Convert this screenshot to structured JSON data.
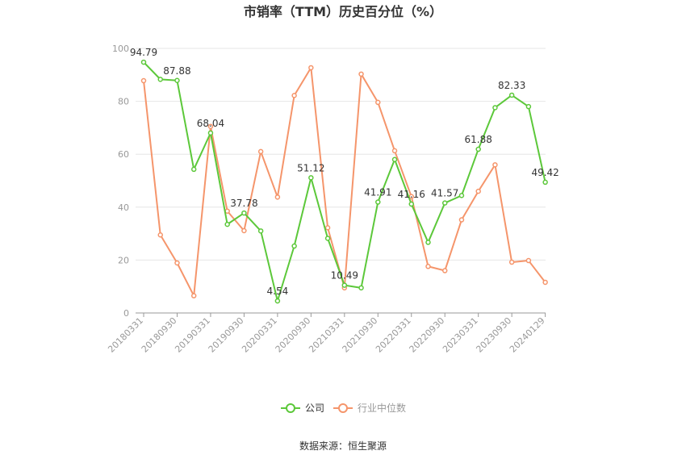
{
  "chart_data": {
    "type": "line",
    "title": "市销率（TTM）历史百分位（%）",
    "xlabel": "",
    "ylabel": "",
    "ylim": [
      0,
      100
    ],
    "yticks": [
      0,
      20,
      40,
      60,
      80,
      100
    ],
    "grid": true,
    "legend_position": "bottom",
    "xtick_labels": [
      "20180331",
      "20180930",
      "20190331",
      "20190930",
      "20200331",
      "20200930",
      "20210331",
      "20210930",
      "20220331",
      "20220930",
      "20230331",
      "20230930",
      "20240129"
    ],
    "x": [
      "20180331",
      "20180630",
      "20180930",
      "20181231",
      "20190331",
      "20190630",
      "20190930",
      "20191231",
      "20200331",
      "20200630",
      "20200930",
      "20201231",
      "20210331",
      "20210630",
      "20210930",
      "20211231",
      "20220331",
      "20220630",
      "20220930",
      "20221231",
      "20230331",
      "20230630",
      "20230930",
      "20231231",
      "20240129"
    ],
    "series": [
      {
        "name": "公司",
        "color": "#5cc83a",
        "values": [
          94.79,
          88.3,
          87.88,
          54.3,
          68.04,
          33.5,
          37.78,
          31.0,
          4.54,
          25.3,
          51.12,
          28.2,
          10.49,
          9.5,
          41.91,
          58.0,
          41.16,
          26.7,
          41.57,
          44.4,
          61.88,
          77.6,
          82.33,
          78.0,
          49.42
        ],
        "labels": {
          "0": "94.79",
          "2": "87.88",
          "4": "68.04",
          "6": "37.78",
          "8": "4.54",
          "10": "51.12",
          "12": "10.49",
          "14": "41.91",
          "16": "41.16",
          "18": "41.57",
          "20": "61.88",
          "22": "82.33",
          "24": "49.42"
        }
      },
      {
        "name": "行业中位数",
        "color": "#f5956b",
        "values": [
          87.8,
          29.5,
          18.9,
          6.5,
          70.5,
          38.5,
          31.1,
          61.0,
          43.8,
          82.2,
          92.7,
          32.2,
          9.5,
          90.3,
          79.6,
          61.3,
          44.0,
          17.6,
          16.0,
          35.2,
          46.0,
          56.0,
          19.2,
          19.8,
          11.6
        ]
      }
    ],
    "source_text": "数据来源：恒生聚源"
  }
}
